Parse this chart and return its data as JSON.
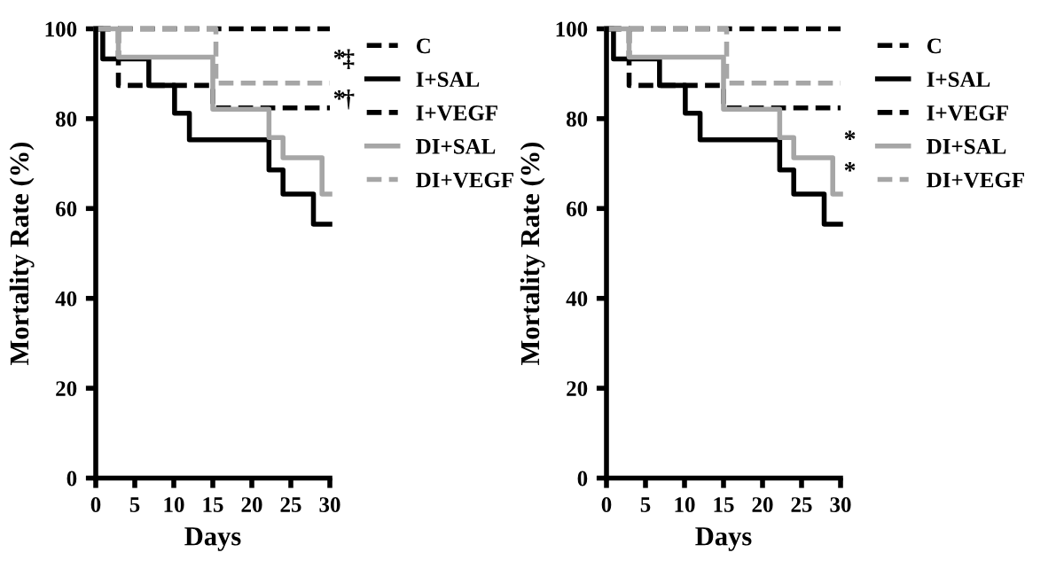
{
  "chart_data": [
    {
      "type": "step",
      "xlabel": "Days",
      "ylabel": "Mortality Rate (%)",
      "xlim": [
        0,
        30
      ],
      "xticks": [
        0,
        5,
        10,
        15,
        20,
        25,
        30
      ],
      "ylim": [
        0,
        100
      ],
      "yticks": [
        0,
        20,
        40,
        60,
        80,
        100
      ],
      "grid": false,
      "legend": "right",
      "series": [
        {
          "name": "C",
          "color": "#000000",
          "line_style": "dashed",
          "x": [
            0,
            30
          ],
          "values": [
            100,
            100
          ]
        },
        {
          "name": "I+SAL",
          "color": "#000000",
          "line_style": "solid",
          "x": [
            0,
            0.9,
            6.8,
            10.1,
            12,
            22.2,
            24,
            27.9,
            30
          ],
          "values": [
            100,
            93.3,
            87.4,
            81.2,
            75.3,
            68.6,
            63.2,
            56.5,
            56.5
          ]
        },
        {
          "name": "I+VEGF",
          "color": "#000000",
          "line_style": "dashed",
          "x": [
            0,
            2.9,
            15,
            30
          ],
          "values": [
            100,
            87.4,
            82.4,
            82.4
          ]
        },
        {
          "name": "DI+SAL",
          "color": "#a6a6a6",
          "line_style": "solid",
          "x": [
            0,
            2.9,
            15,
            22.2,
            24,
            29,
            30
          ],
          "values": [
            100,
            93.7,
            82.1,
            75.8,
            71.3,
            63.2,
            63.2
          ]
        },
        {
          "name": "DI+VEGF",
          "color": "#a6a6a6",
          "line_style": "dashed",
          "x": [
            0,
            15.4,
            30
          ],
          "values": [
            100,
            87.9,
            87.9
          ]
        }
      ],
      "annotations": [
        "*",
        "‡",
        "*",
        "†"
      ]
    },
    {
      "type": "step",
      "xlabel": "Days",
      "ylabel": "Mortality Rate (%)",
      "xlim": [
        0,
        30
      ],
      "xticks": [
        0,
        5,
        10,
        15,
        20,
        25,
        30
      ],
      "ylim": [
        0,
        100
      ],
      "yticks": [
        0,
        20,
        40,
        60,
        80,
        100
      ],
      "grid": false,
      "legend": "right",
      "series": [
        {
          "name": "C",
          "color": "#000000",
          "line_style": "dashed",
          "x": [
            0,
            30
          ],
          "values": [
            100,
            100
          ]
        },
        {
          "name": "I+SAL",
          "color": "#000000",
          "line_style": "solid",
          "x": [
            0,
            0.9,
            6.8,
            10.1,
            12,
            22.2,
            24,
            27.9,
            30
          ],
          "values": [
            100,
            93.3,
            87.4,
            81.2,
            75.3,
            68.6,
            63.2,
            56.5,
            56.5
          ]
        },
        {
          "name": "I+VEGF",
          "color": "#000000",
          "line_style": "dashed",
          "x": [
            0,
            2.9,
            15,
            30
          ],
          "values": [
            100,
            87.4,
            82.4,
            82.4
          ]
        },
        {
          "name": "DI+SAL",
          "color": "#a6a6a6",
          "line_style": "solid",
          "x": [
            0,
            2.9,
            15,
            22.2,
            24,
            29,
            30
          ],
          "values": [
            100,
            93.7,
            82.1,
            75.8,
            71.3,
            63.2,
            63.2
          ]
        },
        {
          "name": "DI+VEGF",
          "color": "#a6a6a6",
          "line_style": "dashed",
          "x": [
            0,
            15.4,
            30
          ],
          "values": [
            100,
            87.9,
            87.9
          ]
        }
      ],
      "annotations": [
        "*",
        "*"
      ]
    }
  ]
}
